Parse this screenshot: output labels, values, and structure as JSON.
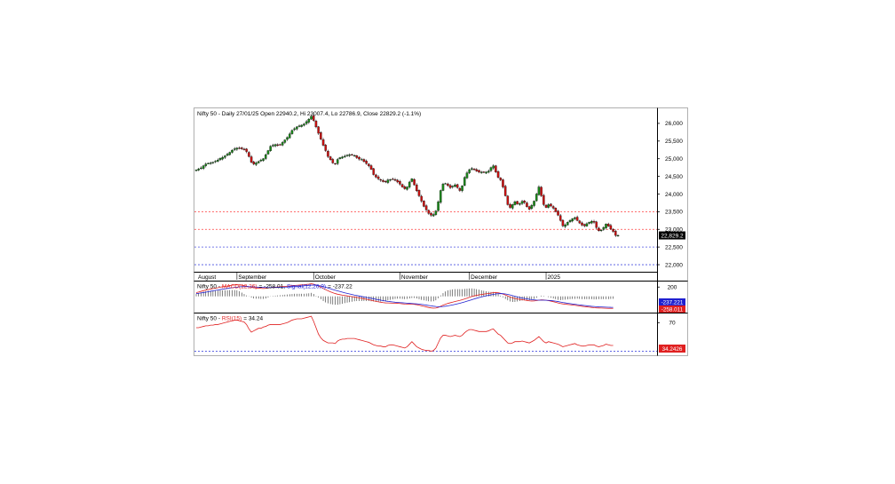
{
  "chart_data": [
    {
      "type": "candlestick",
      "title": "Nifty 50 - Daily 27/01/25 Open 22940.2, Hi 23007.4, Lo 22786.9, Close 22829.2 (-1.1%)",
      "y_ticks": [
        "26,000",
        "25,500",
        "25,000",
        "24,500",
        "24,000",
        "23,500",
        "23,000",
        "22,500",
        "22,000"
      ],
      "ylim": [
        21800,
        26350
      ],
      "last_price": 22829.2,
      "last_price_label": "22,829.2",
      "horizontal_levels": [
        {
          "value": 23500,
          "color": "#ff4040"
        },
        {
          "value": 23000,
          "color": "#ff4040"
        },
        {
          "value": 22500,
          "color": "#4a50e0"
        },
        {
          "value": 22000,
          "color": "#4a50e0"
        }
      ],
      "x_labels": [
        {
          "label": "August",
          "index": 0
        },
        {
          "label": "September",
          "index": 17
        },
        {
          "label": "October",
          "index": 49
        },
        {
          "label": "November",
          "index": 85
        },
        {
          "label": "December",
          "index": 114
        },
        {
          "label": "2025",
          "index": 146
        }
      ],
      "n_bars": 175,
      "closes": [
        24680,
        24710,
        24740,
        24800,
        24850,
        24870,
        24880,
        24900,
        24930,
        24960,
        25010,
        25040,
        25080,
        25130,
        25180,
        25240,
        25280,
        25300,
        25290,
        25280,
        25270,
        25200,
        25060,
        24900,
        24850,
        24880,
        24920,
        24960,
        25000,
        25110,
        25230,
        25350,
        25380,
        25400,
        25390,
        25400,
        25460,
        25530,
        25600,
        25700,
        25800,
        25850,
        25900,
        25930,
        25950,
        25980,
        26050,
        26120,
        26200,
        26080,
        25900,
        25720,
        25550,
        25380,
        25230,
        25060,
        24970,
        24880,
        24860,
        24980,
        25030,
        25050,
        25070,
        25100,
        25110,
        25110,
        25090,
        25030,
        24990,
        24980,
        24920,
        24860,
        24800,
        24700,
        24550,
        24480,
        24430,
        24390,
        24350,
        24340,
        24400,
        24410,
        24420,
        24390,
        24340,
        24280,
        24200,
        24150,
        24200,
        24340,
        24430,
        24260,
        24090,
        23950,
        23800,
        23650,
        23550,
        23450,
        23400,
        23420,
        23520,
        23780,
        24100,
        24280,
        24300,
        24240,
        24180,
        24220,
        24260,
        24180,
        24100,
        24230,
        24470,
        24600,
        24690,
        24720,
        24690,
        24650,
        24620,
        24620,
        24610,
        24620,
        24650,
        24750,
        24800,
        24620,
        24470,
        24400,
        24200,
        23950,
        23700,
        23620,
        23700,
        23780,
        23720,
        23730,
        23790,
        23760,
        23640,
        23570,
        23680,
        23800,
        24000,
        24200,
        23950,
        23700,
        23620,
        23700,
        23660,
        23600,
        23500,
        23400,
        23250,
        23100,
        23130,
        23200,
        23250,
        23300,
        23330,
        23250,
        23180,
        23120,
        23100,
        23160,
        23200,
        23230,
        23200,
        23050,
        22960,
        22980,
        23050,
        23150,
        23090,
        23010,
        22940,
        22829,
        22829
      ]
    },
    {
      "type": "line",
      "title": "Nifty 50 - MACD(12,26) = -258.01, Signal(12,26,9) = -237.22",
      "title_prefix": "Nifty 50 - ",
      "series_label_1": "MACD(12,26)",
      "series_value_1": "= -258.01,",
      "series_label_2": "Signal(12,26,9)",
      "series_value_2": "= -237.22",
      "y_ticks": [
        "200"
      ],
      "ylim": [
        -330,
        300
      ],
      "readouts": [
        {
          "label": "-237.221",
          "value": -237.22,
          "color": "#2020d0"
        },
        {
          "label": "-258.011",
          "value": -258.01,
          "color": "#e02020"
        }
      ],
      "series": [
        {
          "name": "MACD(12,26)",
          "color": "#e02020",
          "values": [
            80,
            92,
            108,
            122,
            136,
            148,
            158,
            166,
            176,
            186,
            198,
            206,
            214,
            222,
            232,
            240,
            246,
            250,
            248,
            240,
            230,
            218,
            206,
            196,
            186,
            180,
            176,
            172,
            170,
            172,
            180,
            188,
            194,
            198,
            202,
            206,
            210,
            214,
            218,
            224,
            230,
            234,
            238,
            242,
            246,
            250,
            256,
            262,
            270,
            262,
            244,
            222,
            198,
            170,
            144,
            120,
            98,
            78,
            60,
            46,
            36,
            26,
            18,
            10,
            2,
            -6,
            -14,
            -22,
            -32,
            -42,
            -52,
            -62,
            -72,
            -84,
            -96,
            -108,
            -118,
            -126,
            -134,
            -140,
            -142,
            -144,
            -146,
            -148,
            -150,
            -154,
            -160,
            -166,
            -168,
            -168,
            -168,
            -172,
            -180,
            -190,
            -202,
            -214,
            -226,
            -238,
            -248,
            -254,
            -252,
            -238,
            -214,
            -190,
            -170,
            -152,
            -138,
            -124,
            -110,
            -98,
            -86,
            -72,
            -56,
            -38,
            -20,
            -4,
            10,
            22,
            32,
            40,
            48,
            56,
            62,
            70,
            80,
            84,
            78,
            66,
            50,
            30,
            8,
            -14,
            -32,
            -46,
            -56,
            -64,
            -72,
            -80,
            -88,
            -96,
            -100,
            -98,
            -92,
            -82,
            -76,
            -78,
            -84,
            -92,
            -102,
            -114,
            -128,
            -142,
            -154,
            -162,
            -168,
            -174,
            -180,
            -186,
            -192,
            -198,
            -206,
            -214,
            -220,
            -226,
            -232,
            -238,
            -244,
            -248,
            -250,
            -252,
            -254,
            -256,
            -258,
            -258,
            -258
          ]
        },
        {
          "name": "Signal(12,26,9)",
          "color": "#2020d0",
          "values": [
            60,
            66,
            74,
            82,
            90,
            100,
            110,
            118,
            128,
            136,
            146,
            154,
            162,
            170,
            178,
            186,
            192,
            198,
            204,
            208,
            210,
            210,
            208,
            206,
            204,
            200,
            196,
            194,
            192,
            190,
            190,
            190,
            190,
            192,
            194,
            196,
            198,
            200,
            202,
            206,
            210,
            212,
            216,
            220,
            224,
            228,
            232,
            236,
            240,
            242,
            240,
            232,
            222,
            210,
            196,
            180,
            164,
            148,
            132,
            118,
            104,
            90,
            76,
            64,
            52,
            40,
            28,
            18,
            8,
            -2,
            -12,
            -22,
            -32,
            -42,
            -52,
            -62,
            -72,
            -82,
            -92,
            -100,
            -108,
            -114,
            -120,
            -126,
            -130,
            -134,
            -138,
            -142,
            -146,
            -150,
            -154,
            -158,
            -162,
            -166,
            -172,
            -180,
            -188,
            -196,
            -204,
            -212,
            -218,
            -222,
            -222,
            -218,
            -212,
            -204,
            -194,
            -184,
            -172,
            -160,
            -148,
            -134,
            -120,
            -104,
            -88,
            -72,
            -56,
            -40,
            -26,
            -12,
            0,
            12,
            22,
            32,
            42,
            52,
            58,
            60,
            58,
            52,
            42,
            30,
            16,
            2,
            -12,
            -24,
            -36,
            -46,
            -54,
            -62,
            -70,
            -76,
            -80,
            -82,
            -82,
            -82,
            -84,
            -86,
            -90,
            -96,
            -104,
            -112,
            -122,
            -132,
            -140,
            -148,
            -156,
            -164,
            -170,
            -178,
            -184,
            -190,
            -196,
            -202,
            -208,
            -214,
            -218,
            -222,
            -226,
            -228,
            -230,
            -232,
            -234,
            -236,
            -237
          ]
        }
      ]
    },
    {
      "type": "line",
      "title": "Nifty 50 - RSI(15) = 34.24",
      "title_prefix": "Nifty 50 - ",
      "series_label_1": "RSI(15)",
      "series_value_1": "= 34.24",
      "y_ticks": [
        "70"
      ],
      "ylim": [
        20,
        83
      ],
      "readouts": [
        {
          "label": "34.2426",
          "value": 34.24,
          "color": "#e02020"
        }
      ],
      "levels": [
        {
          "value": 25,
          "color": "#4a50e0"
        }
      ],
      "series": [
        {
          "name": "RSI(15)",
          "color": "#e02020",
          "values": [
            62,
            62,
            63,
            64,
            65,
            65,
            66,
            66,
            67,
            67,
            68,
            69,
            70,
            71,
            72,
            73,
            74,
            74,
            73,
            72,
            71,
            67,
            60,
            55,
            57,
            59,
            61,
            61,
            63,
            64,
            66,
            67,
            67,
            67,
            67,
            67,
            68,
            69,
            70,
            72,
            74,
            75,
            76,
            76,
            76,
            77,
            78,
            79,
            80,
            72,
            62,
            52,
            46,
            42,
            40,
            38,
            38,
            38,
            37,
            41,
            43,
            44,
            44,
            45,
            45,
            45,
            45,
            44,
            43,
            42,
            41,
            40,
            39,
            37,
            35,
            34,
            33,
            33,
            32,
            32,
            34,
            35,
            35,
            34,
            33,
            32,
            31,
            30,
            32,
            36,
            40,
            36,
            32,
            30,
            28,
            27,
            26,
            26,
            25,
            26,
            30,
            38,
            46,
            50,
            50,
            49,
            48,
            49,
            50,
            49,
            48,
            50,
            54,
            57,
            59,
            59,
            58,
            57,
            56,
            56,
            56,
            56,
            57,
            59,
            60,
            56,
            52,
            50,
            46,
            42,
            38,
            37,
            38,
            40,
            40,
            40,
            41,
            40,
            39,
            38,
            40,
            42,
            45,
            48,
            44,
            40,
            38,
            40,
            39,
            38,
            37,
            36,
            34,
            32,
            33,
            34,
            35,
            36,
            37,
            35,
            34,
            33,
            33,
            34,
            35,
            35,
            35,
            33,
            32,
            33,
            34,
            36,
            35,
            34,
            34
          ]
        }
      ]
    }
  ]
}
